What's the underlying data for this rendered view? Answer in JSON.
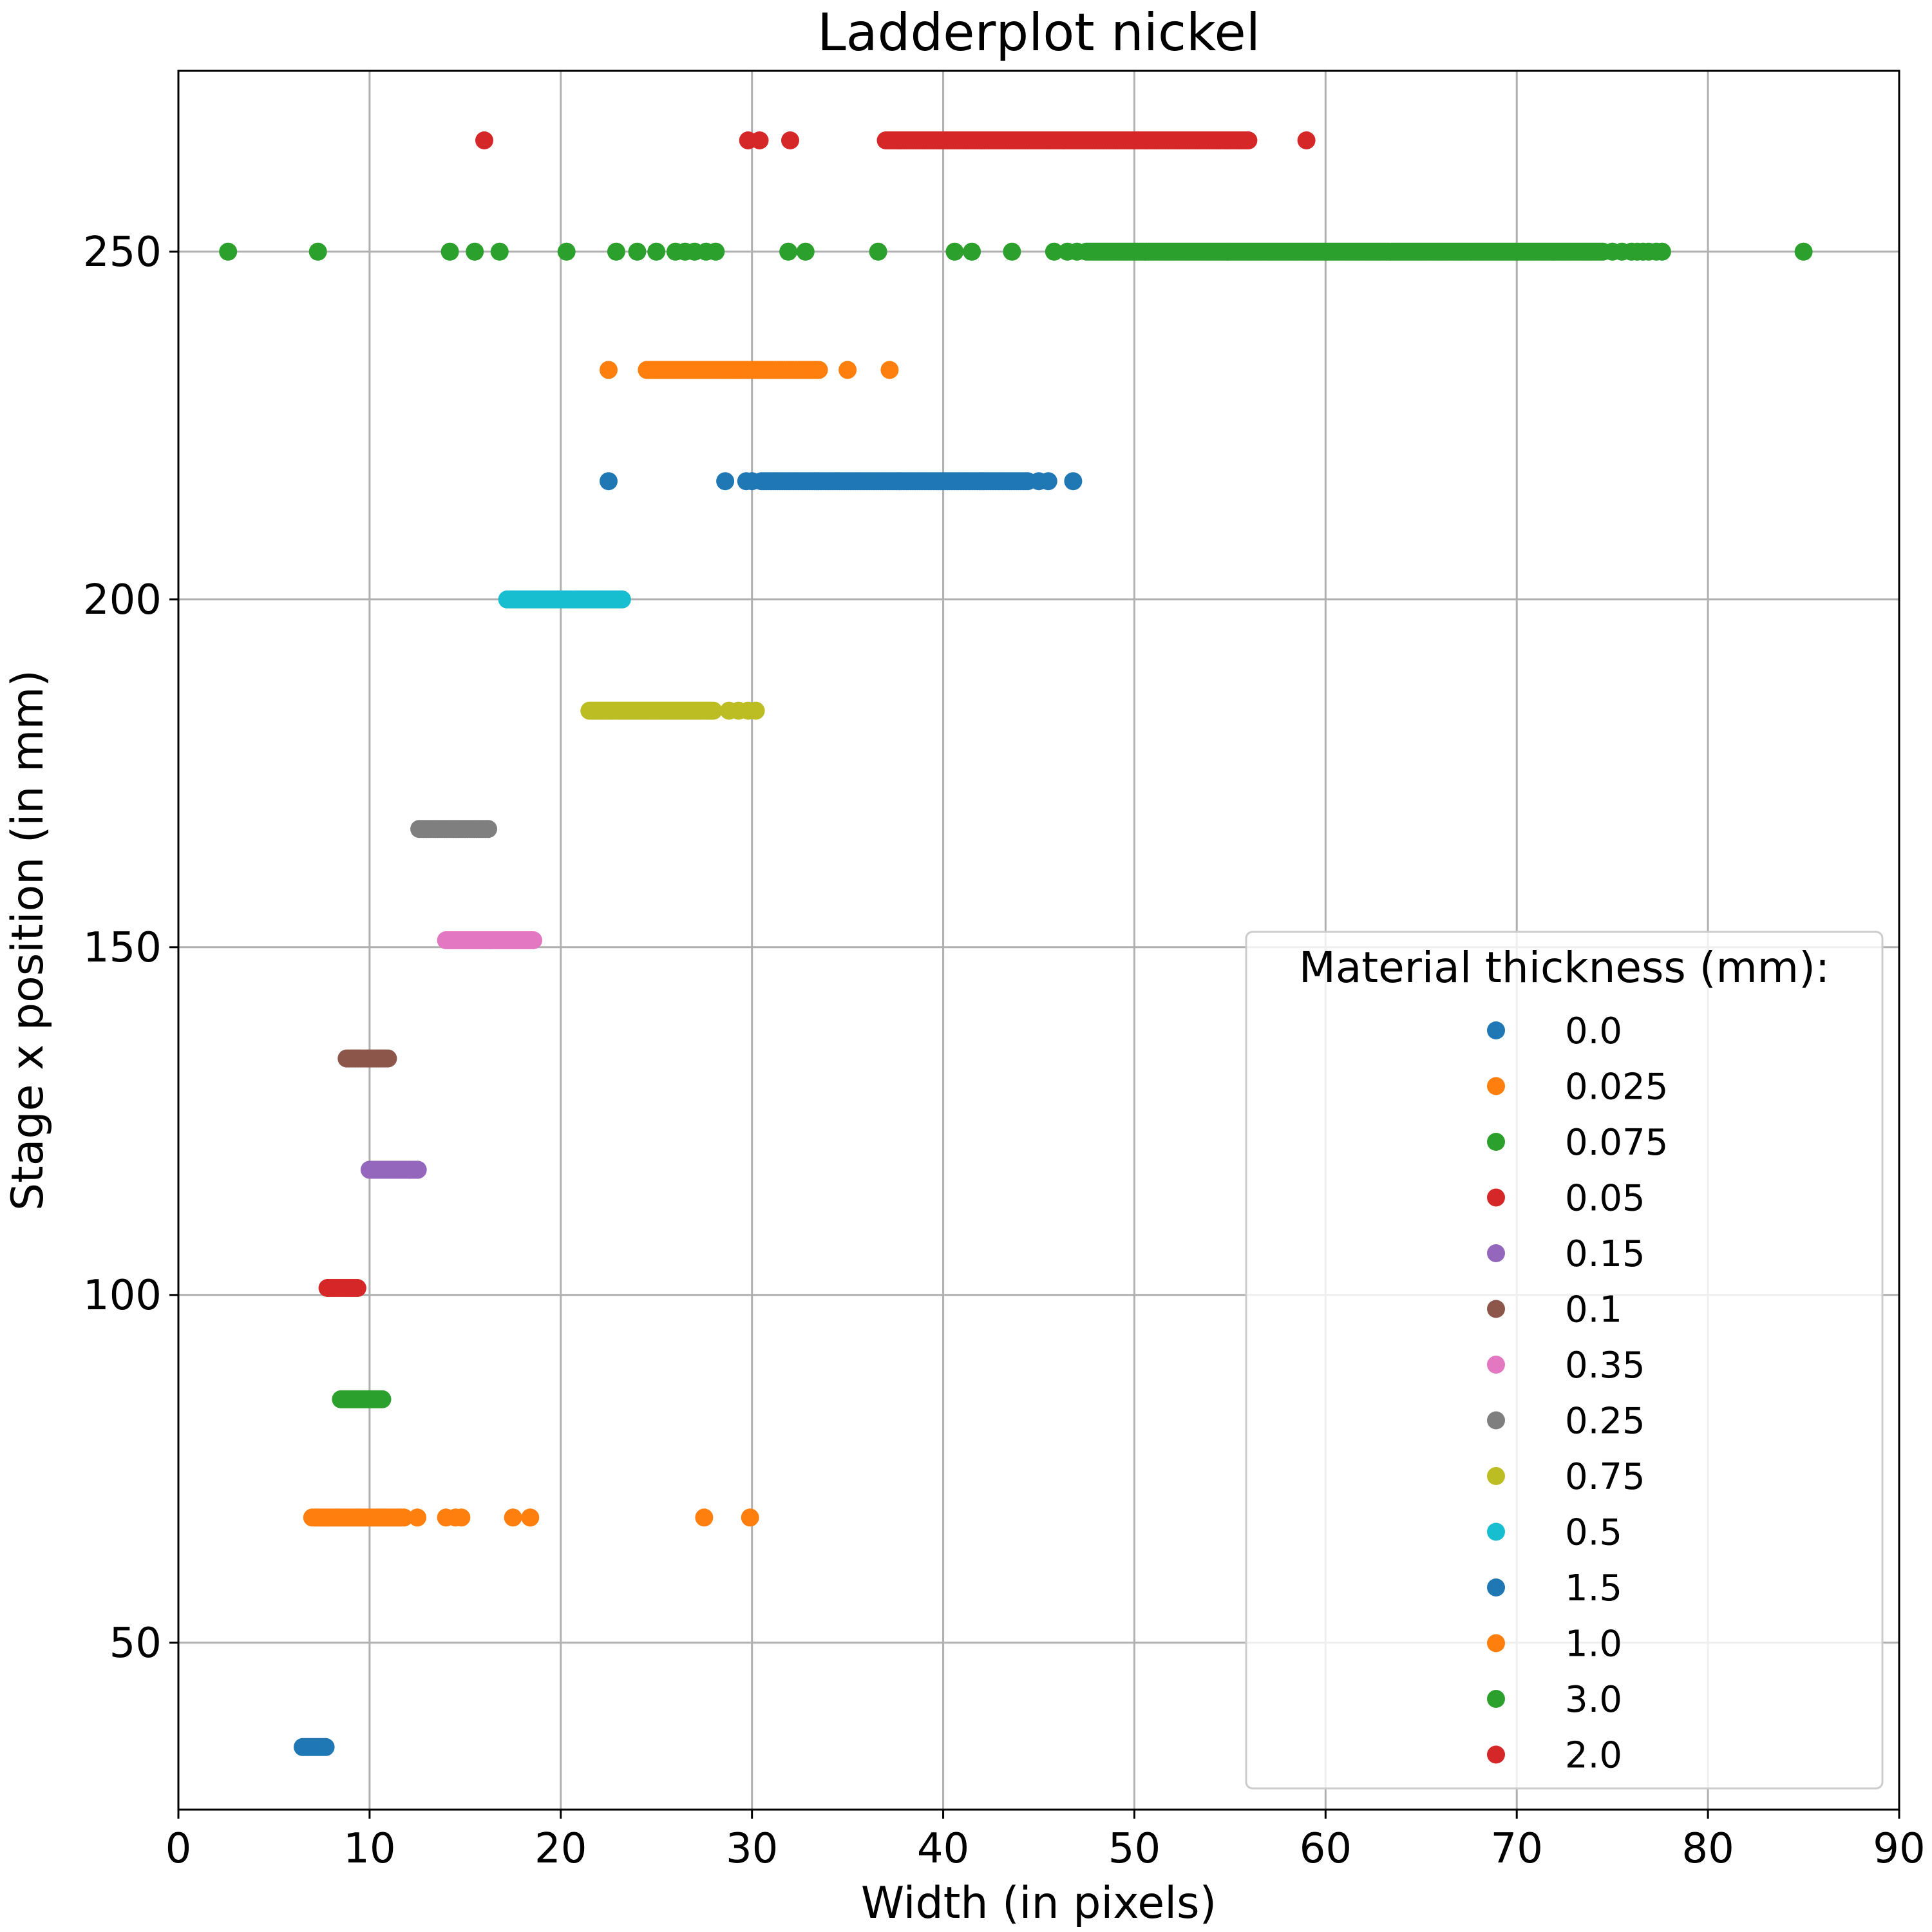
{
  "chart_data": {
    "type": "scatter",
    "title": "Ladderplot nickel",
    "xlabel": "Width (in pixels)",
    "ylabel": "Stage x position (in mm)",
    "xlim": [
      0,
      90
    ],
    "ylim": [
      26,
      276
    ],
    "xticks": [
      0,
      10,
      20,
      30,
      40,
      50,
      60,
      70,
      80,
      90
    ],
    "yticks": [
      50,
      100,
      150,
      200,
      250
    ],
    "grid": true,
    "legend": {
      "title": "Material thickness (mm):",
      "placement": "lower-right"
    },
    "series": [
      {
        "name": "0.0",
        "color": "#1f77b4",
        "y": 35,
        "range": [
          6.5,
          7.8
        ],
        "x": []
      },
      {
        "name": "0.025",
        "color": "#ff7f0e",
        "y": 68,
        "range": [
          7.0,
          11.8
        ],
        "x": [
          12.5,
          14.0,
          14.5,
          14.8,
          17.5,
          18.4,
          27.5,
          29.9
        ]
      },
      {
        "name": "0.075",
        "color": "#2ca02c",
        "y": 85,
        "range": [
          8.5,
          10.7
        ],
        "x": []
      },
      {
        "name": "0.05",
        "color": "#d62728",
        "y": 101,
        "range": [
          7.8,
          9.4
        ],
        "x": []
      },
      {
        "name": "0.15",
        "color": "#9467bd",
        "y": 118,
        "range": [
          10.0,
          12.6
        ],
        "x": []
      },
      {
        "name": "0.1",
        "color": "#8c564b",
        "y": 134,
        "range": [
          8.8,
          11.0
        ],
        "x": []
      },
      {
        "name": "0.35",
        "color": "#e377c2",
        "y": 151,
        "range": [
          14.0,
          18.6
        ],
        "x": []
      },
      {
        "name": "0.25",
        "color": "#7f7f7f",
        "y": 167,
        "range": [
          12.6,
          16.2
        ],
        "x": []
      },
      {
        "name": "0.75",
        "color": "#bcbd22",
        "y": 184,
        "range": [
          21.5,
          28.0
        ],
        "x": [
          28.8,
          29.3,
          29.8,
          30.2
        ]
      },
      {
        "name": "0.5",
        "color": "#17becf",
        "y": 200,
        "range": [
          17.2,
          23.2
        ],
        "x": []
      },
      {
        "name": "1.5",
        "color": "#1f77b4",
        "y": 217,
        "range": [
          30.5,
          44.5
        ],
        "x": [
          22.5,
          28.6,
          29.7,
          30.0,
          45.0,
          45.5,
          46.8
        ]
      },
      {
        "name": "1.0",
        "color": "#ff7f0e",
        "y": 233,
        "range": [
          24.5,
          33.5
        ],
        "x": [
          22.5,
          35.0,
          37.2
        ]
      },
      {
        "name": "3.0",
        "color": "#2ca02c",
        "y": 250,
        "range": [
          47.5,
          74.5
        ],
        "x": [
          2.6,
          7.3,
          14.2,
          15.5,
          16.8,
          20.3,
          22.9,
          24.0,
          25.0,
          26.0,
          26.5,
          27.0,
          27.6,
          28.1,
          31.9,
          32.8,
          36.6,
          40.6,
          41.5,
          43.6,
          45.8,
          46.5,
          47.0,
          75.0,
          75.5,
          76.0,
          76.3,
          76.6,
          76.9,
          77.3,
          77.6,
          85.0
        ]
      },
      {
        "name": "2.0",
        "color": "#d62728",
        "y": 266,
        "range": [
          37.0,
          56.0
        ],
        "x": [
          16.0,
          29.8,
          30.4,
          32.0,
          59.0
        ]
      }
    ]
  }
}
